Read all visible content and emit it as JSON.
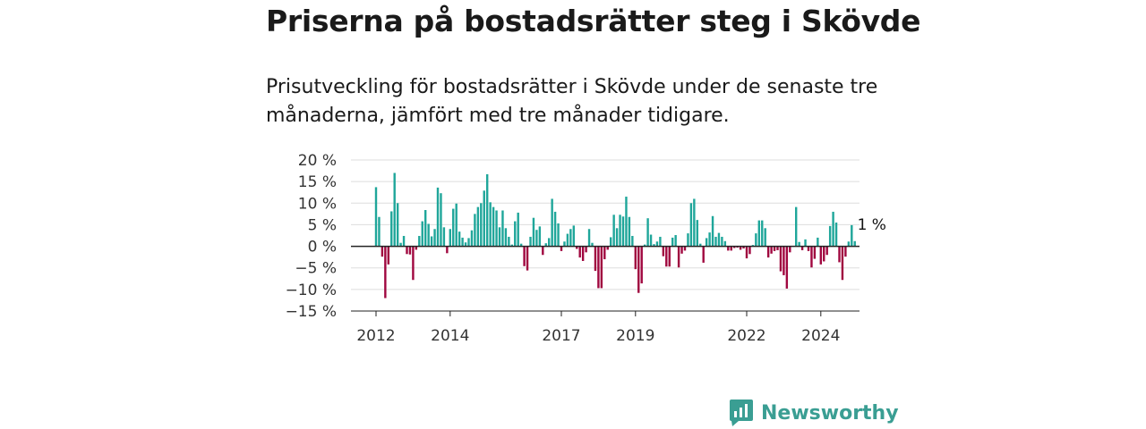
{
  "title": "Priserna på bostadsrätter steg i Skövde",
  "subtitle": "Prisutveckling för bostadsrätter i Skövde under de senaste tre månaderna, jämfört med tre månader tidigare.",
  "brand": {
    "name": "Newsworthy"
  },
  "colors": {
    "positive": "#1fa69a",
    "negative": "#a0073f",
    "grid": "#dddddd",
    "brand": "#3a9e93"
  },
  "chart_data": {
    "type": "bar",
    "x_start": "2012-01",
    "x_tick_labels": [
      "2012",
      "2014",
      "2017",
      "2019",
      "2022",
      "2024"
    ],
    "y_tick_labels": [
      "20 %",
      "15 %",
      "10 %",
      "5 %",
      "0 %",
      "−5 %",
      "−10 %",
      "−15 %"
    ],
    "ylim": [
      -15,
      20
    ],
    "grid": true,
    "end_label": "1 %",
    "values": [
      13.7,
      6.8,
      -2.4,
      -12.0,
      -4.2,
      8.1,
      17.0,
      10.0,
      0.8,
      2.4,
      -1.8,
      -1.9,
      -7.8,
      -0.8,
      2.4,
      5.8,
      8.4,
      5.2,
      2.3,
      4.0,
      13.6,
      12.3,
      4.4,
      -1.6,
      4.0,
      8.7,
      9.9,
      3.4,
      2.0,
      0.9,
      1.9,
      3.7,
      7.5,
      9.1,
      10.0,
      12.9,
      16.7,
      10.2,
      9.1,
      8.3,
      4.4,
      8.3,
      4.2,
      2.2,
      0.4,
      5.8,
      7.8,
      0.6,
      -4.6,
      -5.6,
      2.2,
      6.6,
      3.8,
      4.6,
      -2.0,
      0.7,
      1.9,
      11.0,
      8.0,
      5.3,
      -1.1,
      1.1,
      2.9,
      4.0,
      4.8,
      -0.6,
      -2.6,
      -3.4,
      -1.4,
      4.0,
      0.8,
      -5.7,
      -9.7,
      -9.7,
      -3.0,
      -0.8,
      2.1,
      7.3,
      4.2,
      7.3,
      6.9,
      11.5,
      6.8,
      2.4,
      -5.3,
      -10.8,
      -8.6,
      0.4,
      6.5,
      2.7,
      0.5,
      1.1,
      2.2,
      -2.3,
      -4.7,
      -4.7,
      2.0,
      2.6,
      -4.9,
      -1.7,
      -1.0,
      3.0,
      10.0,
      11.0,
      6.1,
      0.6,
      -3.8,
      1.9,
      3.2,
      7.0,
      2.2,
      3.1,
      2.2,
      1.2,
      -1.0,
      -1.0,
      -0.4,
      -0.3,
      -0.8,
      -0.5,
      -2.8,
      -1.8,
      0.3,
      3.0,
      6.0,
      6.0,
      4.2,
      -2.6,
      -1.7,
      -1.1,
      -0.9,
      -5.8,
      -6.7,
      -9.8,
      -1.4,
      0.0,
      9.1,
      1.0,
      -0.9,
      1.6,
      -1.1,
      -4.9,
      -2.9,
      2.0,
      -4.2,
      -3.5,
      -2.0,
      4.7,
      8.0,
      5.5,
      -3.7,
      -7.8,
      -2.4,
      1.1,
      4.9,
      1.2
    ]
  }
}
